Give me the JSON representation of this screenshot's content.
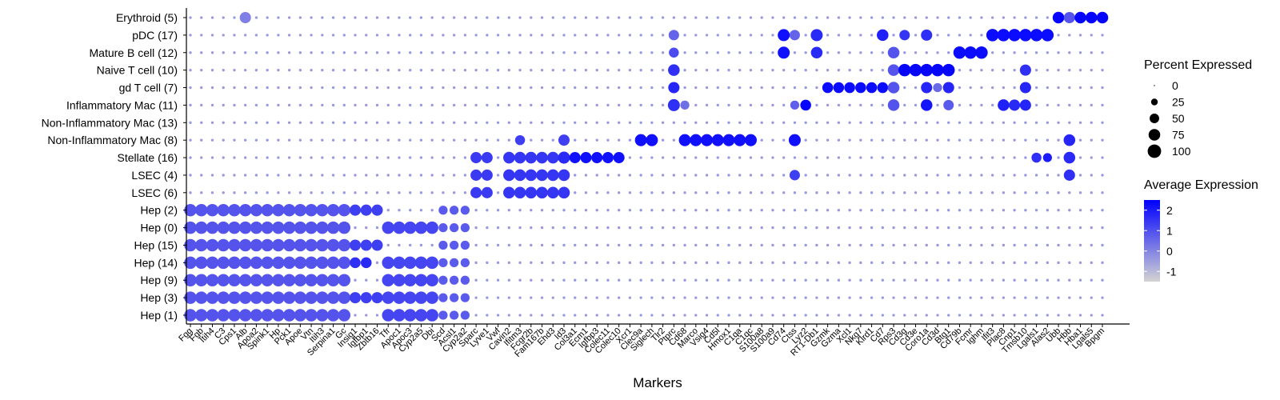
{
  "chart_data": {
    "type": "dotplot",
    "xlabel": "Markers",
    "rows": [
      "Erythroid (5)",
      "pDC (17)",
      "Mature B cell (12)",
      "Naive T cell (10)",
      "gd T cell (7)",
      "Inflammatory Mac (11)",
      "Non-Inflammatory Mac (13)",
      "Non-Inflammatory Mac (8)",
      "Stellate (16)",
      "LSEC (4)",
      "LSEC (6)",
      "Hep (2)",
      "Hep (0)",
      "Hep (15)",
      "Hep (14)",
      "Hep (9)",
      "Hep (3)",
      "Hep (1)"
    ],
    "markers": [
      "Fgg",
      "Fgb",
      "Itih4",
      "C3",
      "Cps1",
      "Alb",
      "Apoa2",
      "Spink1",
      "Hp",
      "Pck1",
      "Apoe",
      "Vtn",
      "Itih3",
      "Serpina1",
      "Gc",
      "Insig1",
      "Igfbp1",
      "Zbtb16",
      "Tfr",
      "Apoc1",
      "Apoc3",
      "Cyp2a5",
      "Dbi",
      "Scd",
      "Acsl1",
      "Cyp2a2",
      "Sparc",
      "Lyve1",
      "Vwf",
      "Cavin2",
      "Ifitm3",
      "Fcgr2b",
      "Fam167b",
      "Ehd3",
      "Id3",
      "Col3a1",
      "Ecm1",
      "Igfbp3",
      "Colec11",
      "Colec10",
      "Xcr1",
      "Clec9a",
      "Siglech",
      "Tlr2",
      "Ptprc",
      "Cd68",
      "Marco",
      "Vsig4",
      "Cd5l",
      "Hmox1",
      "C1qa",
      "C1qc",
      "S100a8",
      "S100a9",
      "Cd74",
      "Ctss",
      "Lyz2",
      "RT1-Db1",
      "Gzmk",
      "Gzma",
      "Xcl1",
      "Nkg7",
      "Klrd1",
      "Cd7",
      "Rps3",
      "Cd3g",
      "Cd3e",
      "Coro1a",
      "Cd3d",
      "Btg1",
      "Cd79b",
      "Fcmr",
      "Ighm",
      "Ifit3",
      "Plac8",
      "Cnp1",
      "Tmsb10",
      "Lgals1",
      "Alas2",
      "Ubb",
      "Hbb",
      "Hba1",
      "Lgals5",
      "Bpgm"
    ],
    "size_legend": {
      "title": "Percent Expressed",
      "values": [
        "0",
        "25",
        "50",
        "75",
        "100"
      ]
    },
    "color_legend": {
      "title": "Average Expression",
      "ticks": [
        "2",
        "1",
        "0",
        "-1"
      ],
      "low_color": "#d3d3d3",
      "high_color": "#0000ff",
      "range": [
        -1.5,
        2.5
      ]
    },
    "blocks": [
      {
        "rows": [
          11,
          12,
          13,
          14,
          15,
          16,
          17
        ],
        "cols": [
          0,
          1,
          2,
          3,
          4,
          5,
          6,
          7,
          8,
          9,
          10,
          11,
          12,
          13,
          14
        ],
        "pct": 85,
        "expr": 0.9
      },
      {
        "rows": [
          11,
          13,
          16
        ],
        "cols": [
          15,
          16,
          17
        ],
        "pct": 70,
        "expr": 1.3
      },
      {
        "rows": [
          12,
          14,
          15,
          16,
          17
        ],
        "cols": [
          18,
          19,
          20,
          21,
          22
        ],
        "pct": 85,
        "expr": 1.2
      },
      {
        "rows": [
          11,
          12,
          13,
          14,
          15,
          16,
          17
        ],
        "cols": [
          23,
          24,
          25
        ],
        "pct": 45,
        "expr": 0.8
      },
      {
        "rows": [
          8,
          9,
          10
        ],
        "cols": [
          26,
          27
        ],
        "pct": 70,
        "expr": 1.4
      },
      {
        "rows": [
          8,
          9,
          10
        ],
        "cols": [
          29,
          30,
          31,
          32,
          33,
          34
        ],
        "pct": 75,
        "expr": 1.5
      },
      {
        "rows": [
          8
        ],
        "cols": [
          35,
          36,
          37,
          38,
          39
        ],
        "pct": 70,
        "expr": 2.2
      },
      {
        "rows": [
          7
        ],
        "cols": [
          41,
          42,
          45,
          46,
          47,
          48,
          49,
          50,
          51
        ],
        "pct": 80,
        "expr": 2.2
      },
      {
        "rows": [
          1,
          2
        ],
        "cols": [
          54
        ],
        "pct": 80,
        "expr": 2.2
      },
      {
        "rows": [
          4
        ],
        "cols": [
          58,
          59,
          60,
          61,
          62,
          63
        ],
        "pct": 65,
        "expr": 2.3
      },
      {
        "rows": [
          2,
          3,
          4,
          5
        ],
        "cols": [
          64
        ],
        "pct": 75,
        "expr": 0.9
      },
      {
        "rows": [
          3
        ],
        "cols": [
          65,
          66,
          67,
          68,
          69
        ],
        "pct": 85,
        "expr": 2.4
      },
      {
        "rows": [
          2
        ],
        "cols": [
          70,
          71,
          72
        ],
        "pct": 85,
        "expr": 2.3
      },
      {
        "rows": [
          1
        ],
        "cols": [
          73,
          74,
          75,
          76,
          77,
          78
        ],
        "pct": 85,
        "expr": 2.3
      },
      {
        "rows": [
          0
        ],
        "cols": [
          79,
          80,
          81,
          82,
          83
        ],
        "pct": 75,
        "expr": 2.4
      }
    ],
    "points": [
      {
        "r": 0,
        "c": 5,
        "pct": 70,
        "expr": 0.1
      },
      {
        "r": 1,
        "c": 44,
        "pct": 60,
        "expr": 0.6
      },
      {
        "r": 2,
        "c": 44,
        "pct": 55,
        "expr": 1.1
      },
      {
        "r": 3,
        "c": 44,
        "pct": 75,
        "expr": 1.6
      },
      {
        "r": 4,
        "c": 44,
        "pct": 70,
        "expr": 1.8
      },
      {
        "r": 5,
        "c": 44,
        "pct": 80,
        "expr": 1.6
      },
      {
        "r": 5,
        "c": 45,
        "pct": 45,
        "expr": 0.4
      },
      {
        "r": 5,
        "c": 56,
        "pct": 65,
        "expr": 2.4
      },
      {
        "r": 5,
        "c": 55,
        "pct": 45,
        "expr": 0.7
      },
      {
        "r": 1,
        "c": 57,
        "pct": 80,
        "expr": 1.7
      },
      {
        "r": 2,
        "c": 57,
        "pct": 75,
        "expr": 1.7
      },
      {
        "r": 1,
        "c": 55,
        "pct": 60,
        "expr": 0.6
      },
      {
        "r": 7,
        "c": 55,
        "pct": 80,
        "expr": 2.2
      },
      {
        "r": 9,
        "c": 55,
        "pct": 60,
        "expr": 1.3
      },
      {
        "r": 1,
        "c": 63,
        "pct": 75,
        "expr": 1.9
      },
      {
        "r": 1,
        "c": 67,
        "pct": 70,
        "expr": 1.6
      },
      {
        "r": 4,
        "c": 67,
        "pct": 70,
        "expr": 1.8
      },
      {
        "r": 5,
        "c": 67,
        "pct": 75,
        "expr": 2.1
      },
      {
        "r": 1,
        "c": 65,
        "pct": 60,
        "expr": 1.5
      },
      {
        "r": 4,
        "c": 68,
        "pct": 45,
        "expr": 0.5
      },
      {
        "r": 4,
        "c": 69,
        "pct": 70,
        "expr": 1.8
      },
      {
        "r": 5,
        "c": 69,
        "pct": 60,
        "expr": 0.8
      },
      {
        "r": 8,
        "c": 77,
        "pct": 55,
        "expr": 1.6
      },
      {
        "r": 8,
        "c": 78,
        "pct": 45,
        "expr": 2.0
      },
      {
        "r": 5,
        "c": 74,
        "pct": 75,
        "expr": 1.9
      },
      {
        "r": 5,
        "c": 75,
        "pct": 70,
        "expr": 1.7
      },
      {
        "r": 5,
        "c": 76,
        "pct": 70,
        "expr": 1.8
      },
      {
        "r": 4,
        "c": 76,
        "pct": 70,
        "expr": 1.8
      },
      {
        "r": 3,
        "c": 76,
        "pct": 70,
        "expr": 1.6
      },
      {
        "r": 0,
        "c": 80,
        "pct": 70,
        "expr": 0.9
      },
      {
        "r": 7,
        "c": 80,
        "pct": 75,
        "expr": 1.8
      },
      {
        "r": 8,
        "c": 80,
        "pct": 75,
        "expr": 1.7
      },
      {
        "r": 9,
        "c": 80,
        "pct": 70,
        "expr": 1.6
      },
      {
        "r": 8,
        "c": 34,
        "pct": 80,
        "expr": 1.7
      },
      {
        "r": 7,
        "c": 34,
        "pct": 70,
        "expr": 1.3
      },
      {
        "r": 7,
        "c": 30,
        "pct": 55,
        "expr": 1.3
      },
      {
        "r": 14,
        "c": 15,
        "pct": 65,
        "expr": 1.6
      },
      {
        "r": 14,
        "c": 16,
        "pct": 65,
        "expr": 1.7
      }
    ]
  }
}
